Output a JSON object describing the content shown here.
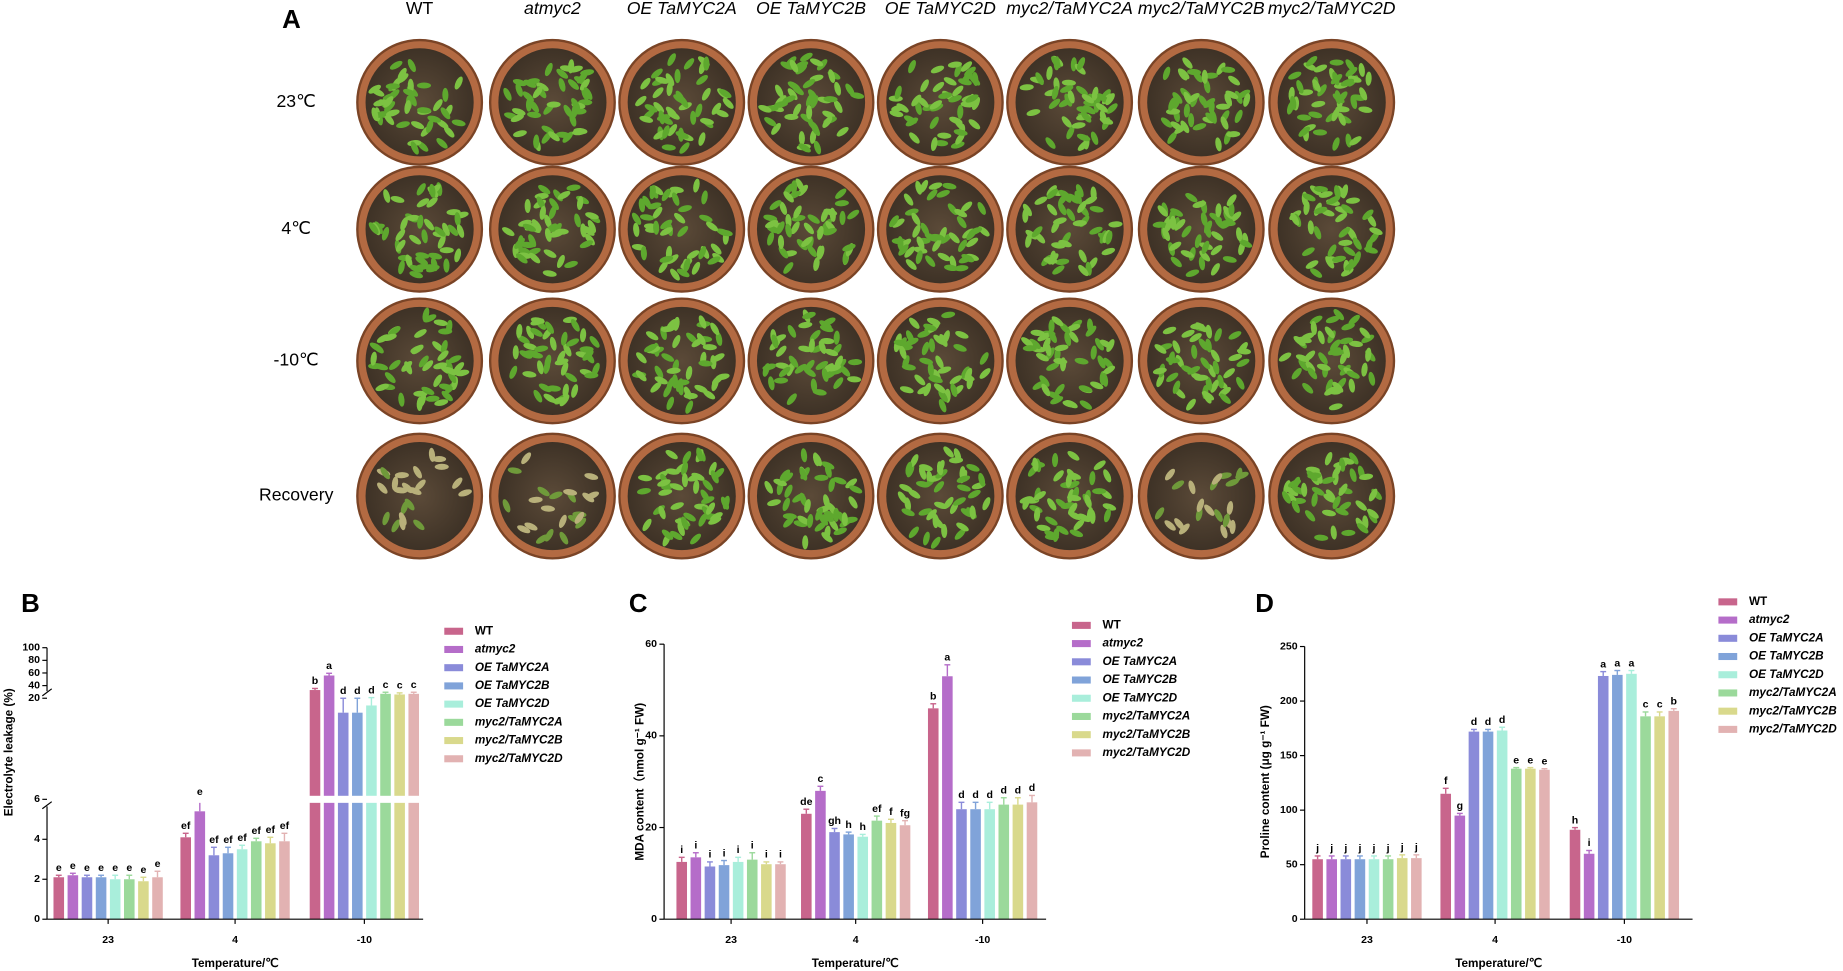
{
  "panel_a": {
    "label": "A",
    "columns": [
      "WT",
      "atmyc2",
      "OE TaMYC2A",
      "OE TaMYC2B",
      "OE TaMYC2D",
      "myc2/TaMYC2A",
      "myc2/TaMYC2B",
      "myc2/TaMYC2D"
    ],
    "rows": [
      "23℃",
      "4℃",
      "-10℃",
      "Recovery"
    ]
  },
  "chart_data": [
    {
      "type": "bar",
      "panel": "B",
      "ylabel": "Electrolyte leakage (%)",
      "xlabel": "Temperature/℃",
      "categories": [
        "23",
        "4",
        "-10"
      ],
      "ylim": [
        0,
        100
      ],
      "ybreak": [
        6,
        20
      ],
      "yticks": [
        0,
        2,
        4,
        6,
        20,
        40,
        60,
        80,
        100
      ],
      "series": [
        {
          "name": "WT",
          "color": "#c8658c",
          "values": [
            2.1,
            4.1,
            33
          ],
          "errors": [
            0.1,
            0.2,
            2.5
          ],
          "letters": [
            "e",
            "ef",
            "b"
          ]
        },
        {
          "name": "atmyc2",
          "color": "#b56dc9",
          "values": [
            2.2,
            5.4,
            56
          ],
          "errors": [
            0.1,
            0.6,
            3.5
          ],
          "letters": [
            "e",
            "e",
            "a"
          ]
        },
        {
          "name": "OE TaMYC2A",
          "color": "#8a8bd9",
          "values": [
            2.1,
            3.2,
            18
          ],
          "errors": [
            0.1,
            0.4,
            2
          ],
          "letters": [
            "e",
            "ef",
            "d"
          ]
        },
        {
          "name": "OE TaMYC2B",
          "color": "#80a3d9",
          "values": [
            2.1,
            3.3,
            18
          ],
          "errors": [
            0.1,
            0.3,
            2
          ],
          "letters": [
            "e",
            "ef",
            "d"
          ]
        },
        {
          "name": "OE TaMYC2D",
          "color": "#a9eedb",
          "values": [
            2.0,
            3.5,
            19
          ],
          "errors": [
            0.2,
            0.2,
            2
          ],
          "letters": [
            "e",
            "ef",
            "d"
          ]
        },
        {
          "name": "myc2/TaMYC2A",
          "color": "#9bd99b",
          "values": [
            2.0,
            3.9,
            27
          ],
          "errors": [
            0.2,
            0.15,
            2.5
          ],
          "letters": [
            "e",
            "ef",
            "c"
          ]
        },
        {
          "name": "myc2/TaMYC2B",
          "color": "#d9d98c",
          "values": [
            1.9,
            3.8,
            26
          ],
          "errors": [
            0.2,
            0.3,
            2.5
          ],
          "letters": [
            "e",
            "ef",
            "c"
          ]
        },
        {
          "name": "myc2/TaMYC2D",
          "color": "#e2b2b2",
          "values": [
            2.1,
            3.9,
            27
          ],
          "errors": [
            0.3,
            0.4,
            2.5
          ],
          "letters": [
            "e",
            "ef",
            "c"
          ]
        }
      ]
    },
    {
      "type": "bar",
      "panel": "C",
      "ylabel": "MDA content（nmol g⁻¹ FW)",
      "xlabel": "Temperature/℃",
      "categories": [
        "23",
        "4",
        "-10"
      ],
      "ylim": [
        0,
        60
      ],
      "yticks": [
        0,
        20,
        40,
        60
      ],
      "series": [
        {
          "name": "WT",
          "color": "#c8658c",
          "values": [
            12.5,
            23,
            46
          ],
          "errors": [
            1,
            1,
            1
          ],
          "letters": [
            "i",
            "de",
            "b"
          ]
        },
        {
          "name": "atmyc2",
          "color": "#b56dc9",
          "values": [
            13.5,
            28,
            53
          ],
          "errors": [
            1,
            1,
            2.5
          ],
          "letters": [
            "i",
            "c",
            "a"
          ]
        },
        {
          "name": "OE TaMYC2A",
          "color": "#8a8bd9",
          "values": [
            11.5,
            19,
            24
          ],
          "errors": [
            1,
            0.8,
            1.5
          ],
          "letters": [
            "i",
            "gh",
            "d"
          ]
        },
        {
          "name": "OE TaMYC2B",
          "color": "#80a3d9",
          "values": [
            11.8,
            18.5,
            24
          ],
          "errors": [
            1,
            0.5,
            1.5
          ],
          "letters": [
            "i",
            "h",
            "d"
          ]
        },
        {
          "name": "OE TaMYC2D",
          "color": "#a9eedb",
          "values": [
            12.5,
            18,
            24
          ],
          "errors": [
            1,
            0.5,
            1.5
          ],
          "letters": [
            "i",
            "h",
            "d"
          ]
        },
        {
          "name": "myc2/TaMYC2A",
          "color": "#9bd99b",
          "values": [
            13,
            21.5,
            25
          ],
          "errors": [
            1.5,
            1,
            1.5
          ],
          "letters": [
            "i",
            "ef",
            "d"
          ]
        },
        {
          "name": "myc2/TaMYC2B",
          "color": "#d9d98c",
          "values": [
            12,
            21,
            25
          ],
          "errors": [
            0.5,
            0.8,
            1.5
          ],
          "letters": [
            "i",
            "f",
            "d"
          ]
        },
        {
          "name": "myc2/TaMYC2D",
          "color": "#e2b2b2",
          "values": [
            12,
            20.5,
            25.5
          ],
          "errors": [
            0.5,
            1,
            1.5
          ],
          "letters": [
            "i",
            "fg",
            "d"
          ]
        }
      ]
    },
    {
      "type": "bar",
      "panel": "D",
      "ylabel": "Proline content (μg g⁻¹ FW)",
      "xlabel": "Temperature/℃",
      "categories": [
        "23",
        "4",
        "-10"
      ],
      "ylim": [
        0,
        250
      ],
      "yticks": [
        0,
        50,
        100,
        150,
        200,
        250
      ],
      "series": [
        {
          "name": "WT",
          "color": "#c8658c",
          "values": [
            55,
            115,
            82
          ],
          "errors": [
            3,
            5,
            2
          ],
          "letters": [
            "j",
            "f",
            "h"
          ]
        },
        {
          "name": "atmyc2",
          "color": "#b56dc9",
          "values": [
            55,
            95,
            60
          ],
          "errors": [
            3,
            2,
            3
          ],
          "letters": [
            "j",
            "g",
            "i"
          ]
        },
        {
          "name": "OE TaMYC2A",
          "color": "#8a8bd9",
          "values": [
            55,
            172,
            223
          ],
          "errors": [
            3,
            2,
            4
          ],
          "letters": [
            "j",
            "d",
            "a"
          ]
        },
        {
          "name": "OE TaMYC2B",
          "color": "#80a3d9",
          "values": [
            55,
            172,
            224
          ],
          "errors": [
            3,
            2,
            4
          ],
          "letters": [
            "j",
            "d",
            "a"
          ]
        },
        {
          "name": "OE TaMYC2D",
          "color": "#a9eedb",
          "values": [
            55,
            173,
            225
          ],
          "errors": [
            3,
            3,
            3
          ],
          "letters": [
            "j",
            "d",
            "a"
          ]
        },
        {
          "name": "myc2/TaMYC2A",
          "color": "#9bd99b",
          "values": [
            55,
            138,
            186
          ],
          "errors": [
            3,
            1,
            4
          ],
          "letters": [
            "j",
            "e",
            "c"
          ]
        },
        {
          "name": "myc2/TaMYC2B",
          "color": "#d9d98c",
          "values": [
            56,
            138,
            186
          ],
          "errors": [
            3,
            1,
            4
          ],
          "letters": [
            "j",
            "e",
            "c"
          ]
        },
        {
          "name": "myc2/TaMYC2D",
          "color": "#e2b2b2",
          "values": [
            56,
            137,
            191
          ],
          "errors": [
            3,
            1,
            2
          ],
          "letters": [
            "j",
            "e",
            "b"
          ]
        }
      ]
    }
  ]
}
